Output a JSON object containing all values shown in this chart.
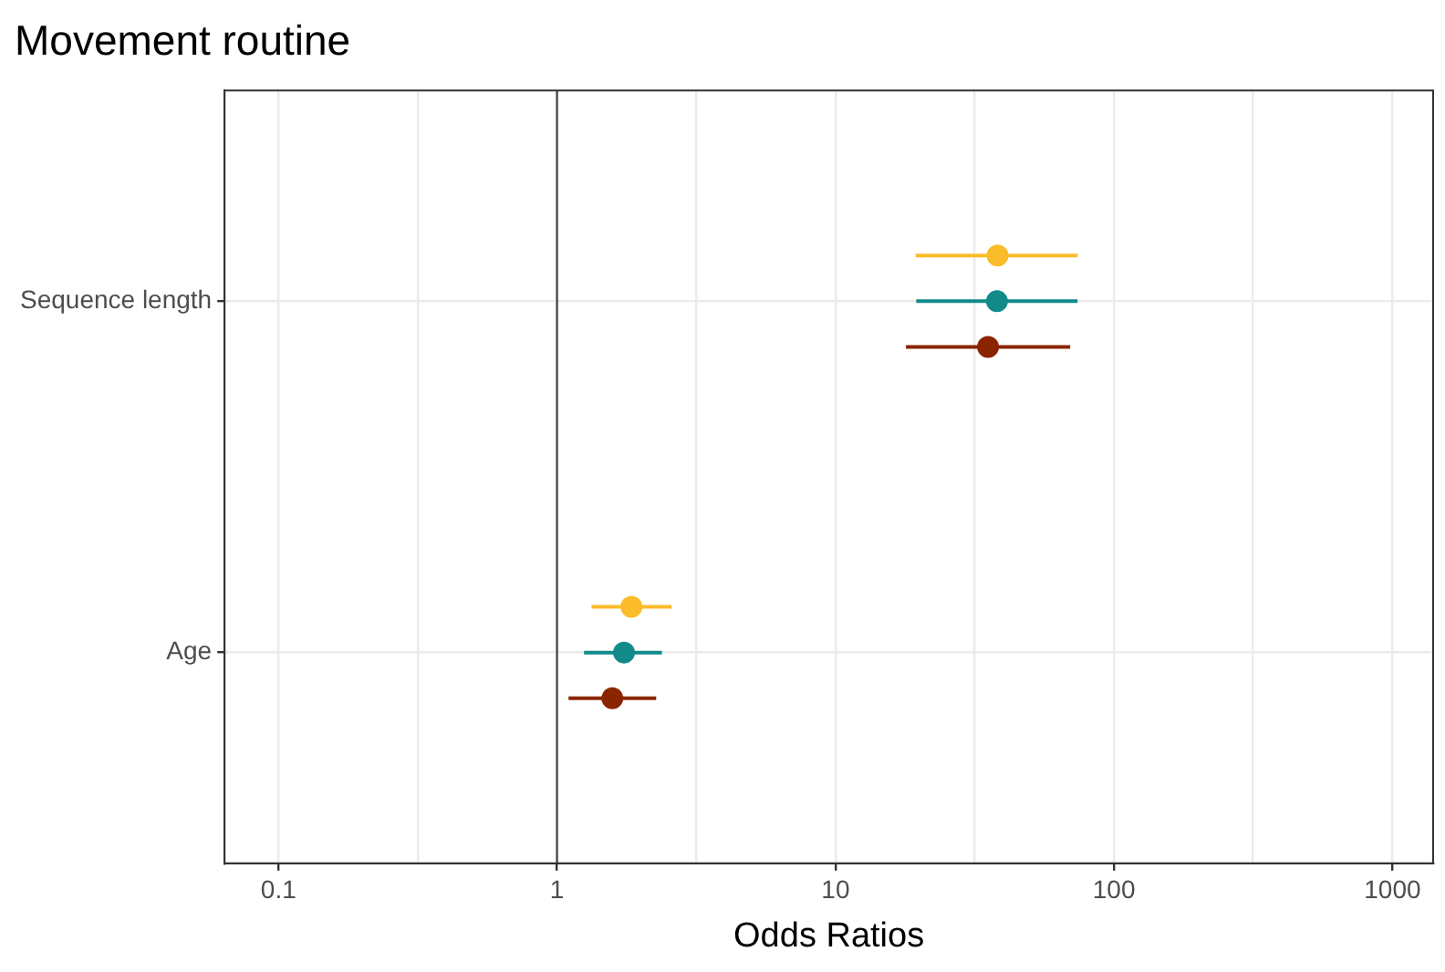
{
  "chart_data": {
    "type": "scatter",
    "title": "Movement routine",
    "xlabel": "Odds Ratios",
    "orientation": "horizontal",
    "log": "x",
    "categories": [
      "Sequence length",
      "Age"
    ],
    "series": [
      {
        "color": "#fbbc2a",
        "values": [
          38.2,
          1.85
        ],
        "errors": [
          [
            19.4,
            74.1
          ],
          [
            1.33,
            2.58
          ]
        ]
      },
      {
        "color": "#128a8a",
        "values": [
          38,
          1.74
        ],
        "errors": [
          [
            19.5,
            74
          ],
          [
            1.25,
            2.38
          ]
        ]
      },
      {
        "color": "#8b2500",
        "values": [
          35.3,
          1.58
        ],
        "errors": [
          [
            17.9,
            69.6
          ],
          [
            1.1,
            2.27
          ]
        ]
      }
    ],
    "xlim": [
      0.064,
      1400
    ],
    "xticks": [
      0.1,
      {
        "value": 0.316,
        "label": null
      },
      1,
      {
        "value": 3.16,
        "label": null
      },
      10,
      {
        "value": 31.6,
        "label": null
      },
      100,
      {
        "value": 316,
        "label": null
      },
      1000
    ],
    "ref_lines": [
      {
        "axis": "x",
        "value": 1,
        "color": "#4d4d4d"
      }
    ],
    "grid": true,
    "legend": false,
    "marker": "circle"
  }
}
